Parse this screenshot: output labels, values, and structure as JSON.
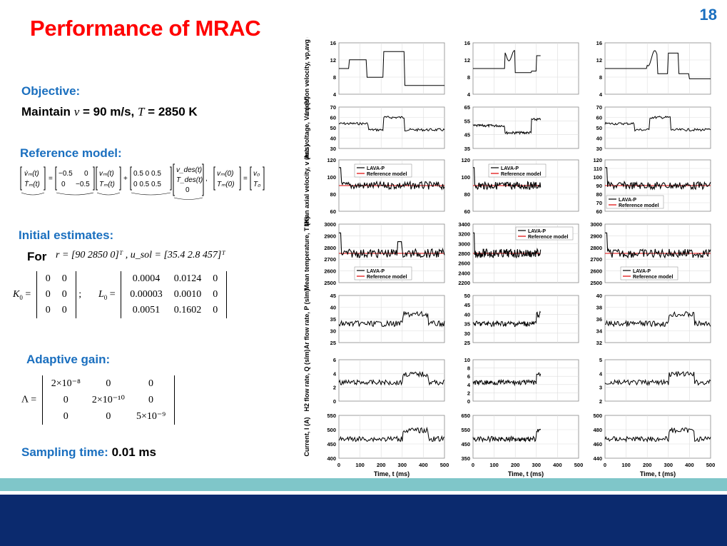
{
  "slide": {
    "title": "Performance of MRAC",
    "number": "18"
  },
  "left": {
    "objective_heading": "Objective:",
    "objective_prefix": "Maintain",
    "objective_v": "v",
    "objective_v_val": " = 90 m/s, ",
    "objective_T": "T",
    "objective_T_val": " = 2850 K",
    "reference_heading": "Reference model:",
    "initial_heading": "Initial estimates:",
    "for_label": "For",
    "r_vector": "r = [90   2850   0]ᵀ , u_sol = [35.4   2.8   457]ᵀ",
    "adaptive_heading": "Adaptive gain:",
    "sampling_label": "Sampling time:",
    "sampling_value": "0.01 ms"
  },
  "equations": {
    "ref_model": "[v̇m(t); Ṫm(t)] = [−0.5 0; 0 −0.5][vm(t); Tm(t)] + [0.5 0 0.5; 0 0.5 0.5][vdes(t); Tdes(t); 0],   [vm(0); Tm(0)] = [v0; T0]",
    "K0": [
      [
        "0",
        "0"
      ],
      [
        "0",
        "0"
      ],
      [
        "0",
        "0"
      ]
    ],
    "L0": [
      [
        "0.0004",
        "0.0124",
        "0"
      ],
      [
        "0.00003",
        "0.0010",
        "0"
      ],
      [
        "0.0051",
        "0.1602",
        "0"
      ]
    ],
    "Lambda": [
      [
        "2×10⁻⁸",
        "0",
        "0"
      ],
      [
        "0",
        "2×10⁻¹⁰",
        "0"
      ],
      [
        "0",
        "0",
        "5×10⁻⁹"
      ]
    ]
  },
  "chart_data": {
    "type": "line",
    "layout": "7 rows x 3 columns of time-series panels",
    "x_label": "Time, t (ms)",
    "x_ticks": [
      0,
      100,
      200,
      300,
      400,
      500
    ],
    "xlim": [
      0,
      500
    ],
    "legend": [
      "LAVA-P",
      "Reference model"
    ],
    "rows": [
      {
        "ylabel": "Injection velocity, vp,avg (m/s)",
        "yticks": [
          [
            "4",
            "8",
            "12",
            "16"
          ],
          [
            "4",
            "8",
            "12",
            "16"
          ],
          [
            "4",
            "8",
            "12",
            "16"
          ]
        ]
      },
      {
        "ylabel": "Arc voltage, Varc (V)",
        "yticks": [
          [
            "30",
            "40",
            "50",
            "60",
            "70"
          ],
          [
            "35",
            "45",
            "55",
            "65"
          ],
          [
            "30",
            "40",
            "50",
            "60",
            "70"
          ]
        ]
      },
      {
        "ylabel": "Mean axial velocity, v (m/s)",
        "yticks": [
          [
            "60",
            "80",
            "100",
            "120"
          ],
          [
            "60",
            "80",
            "100",
            "120"
          ],
          [
            "60",
            "70",
            "80",
            "90",
            "100",
            "110",
            "120"
          ]
        ]
      },
      {
        "ylabel": "Mean temperature, T (K)",
        "yticks": [
          [
            "2500",
            "2600",
            "2700",
            "2800",
            "2900",
            "3000"
          ],
          [
            "2200",
            "2400",
            "2600",
            "2800",
            "3000",
            "3200",
            "3400"
          ],
          [
            "2500",
            "2600",
            "2700",
            "2800",
            "2900",
            "3000"
          ]
        ]
      },
      {
        "ylabel": "Ar flow rate, P (slm)",
        "yticks": [
          [
            "25",
            "30",
            "35",
            "40",
            "45"
          ],
          [
            "25",
            "30",
            "35",
            "40",
            "45",
            "50"
          ],
          [
            "32",
            "34",
            "36",
            "38",
            "40"
          ]
        ]
      },
      {
        "ylabel": "H2 flow rate, Q (slm)",
        "yticks": [
          [
            "0",
            "2",
            "4",
            "6"
          ],
          [
            "0",
            "2",
            "4",
            "6",
            "8",
            "10"
          ],
          [
            "2",
            "3",
            "4",
            "5"
          ]
        ]
      },
      {
        "ylabel": "Current, I (A)",
        "yticks": [
          [
            "400",
            "450",
            "500",
            "550"
          ],
          [
            "350",
            "450",
            "550",
            "650"
          ],
          [
            "440",
            "460",
            "480",
            "500"
          ]
        ]
      }
    ],
    "series": [
      {
        "name": "LAVA-P",
        "color": "#000000"
      },
      {
        "name": "Reference model",
        "color": "#e00000"
      }
    ]
  }
}
